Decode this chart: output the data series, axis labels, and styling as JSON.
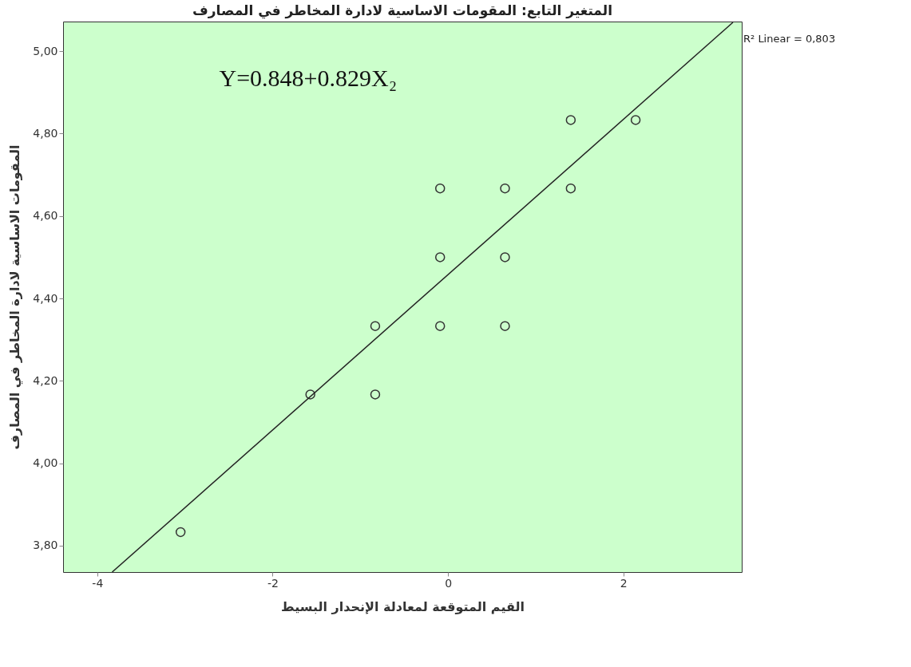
{
  "chart_data": {
    "type": "scatter",
    "title": "المتغير التابع:  المقومات الاساسية لادارة المخاطر في المصارف",
    "xlabel": "القيم المتوقعة لمعادلة الإنحدار البسيط",
    "ylabel": "المقومات الاساسية لادارة المخاطر في المصارف",
    "annotations": [
      "Y=0.848+0.829X₂",
      "R² Linear = 0,803"
    ],
    "series": [
      {
        "marker": "circle",
        "color": "#333333",
        "x": [
          -3.05,
          -1.57,
          -0.83,
          -0.83,
          -0.09,
          -0.09,
          -0.09,
          0.65,
          0.65,
          0.65,
          1.4,
          1.4,
          2.14
        ],
        "values": [
          3.833,
          4.167,
          4.167,
          4.333,
          4.333,
          4.5,
          4.667,
          4.333,
          4.5,
          4.667,
          4.667,
          4.833,
          4.833
        ]
      },
      {
        "type": "line",
        "color": "#222222",
        "x": [
          -3.83,
          3.25
        ],
        "values": [
          3.736,
          5.07
        ]
      }
    ],
    "xlim": [
      -4.39,
      3.35
    ],
    "ylim": [
      3.736,
      5.072
    ],
    "xticks": [
      {
        "value": -4,
        "label": "-4"
      },
      {
        "value": -2,
        "label": "-2"
      },
      {
        "value": 0,
        "label": "0"
      },
      {
        "value": 2,
        "label": "2"
      }
    ],
    "yticks": [
      {
        "value": 3.8,
        "label": "3,80"
      },
      {
        "value": 4.0,
        "label": "4,00"
      },
      {
        "value": 4.2,
        "label": "4,20"
      },
      {
        "value": 4.4,
        "label": "4,40"
      },
      {
        "value": 4.6,
        "label": "4,60"
      },
      {
        "value": 4.8,
        "label": "4,80"
      },
      {
        "value": 5.0,
        "label": "5,00"
      }
    ],
    "grid": false
  }
}
